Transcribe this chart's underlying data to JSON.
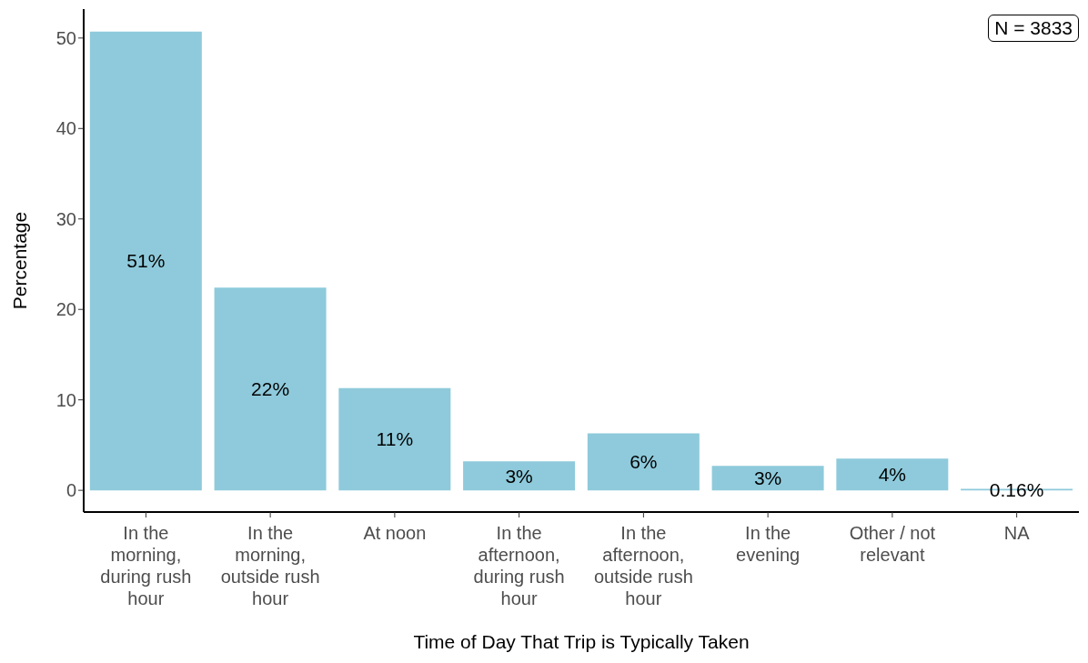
{
  "chart_data": {
    "type": "bar",
    "xlabel": "Time of Day That Trip is Typically Taken",
    "ylabel": "Percentage",
    "categories": [
      "In the morning, during rush hour",
      "In the morning, outside rush hour",
      "At noon",
      "In the afternoon, during rush hour",
      "In the afternoon, outside rush hour",
      "In the evening",
      "Other / not relevant",
      "NA"
    ],
    "values": [
      50.7,
      22.4,
      11.3,
      3.2,
      6.3,
      2.7,
      3.5,
      0.16
    ],
    "value_labels": [
      "51%",
      "22%",
      "11%",
      "3%",
      "6%",
      "3%",
      "4%",
      "0.16%"
    ],
    "color": "#8ecadb",
    "ylim": [
      -2.4,
      53.2
    ],
    "yticks": [
      0,
      10,
      20,
      30,
      40,
      50
    ],
    "grid": false,
    "legend": false,
    "annotations": [
      "N = 3833"
    ]
  }
}
